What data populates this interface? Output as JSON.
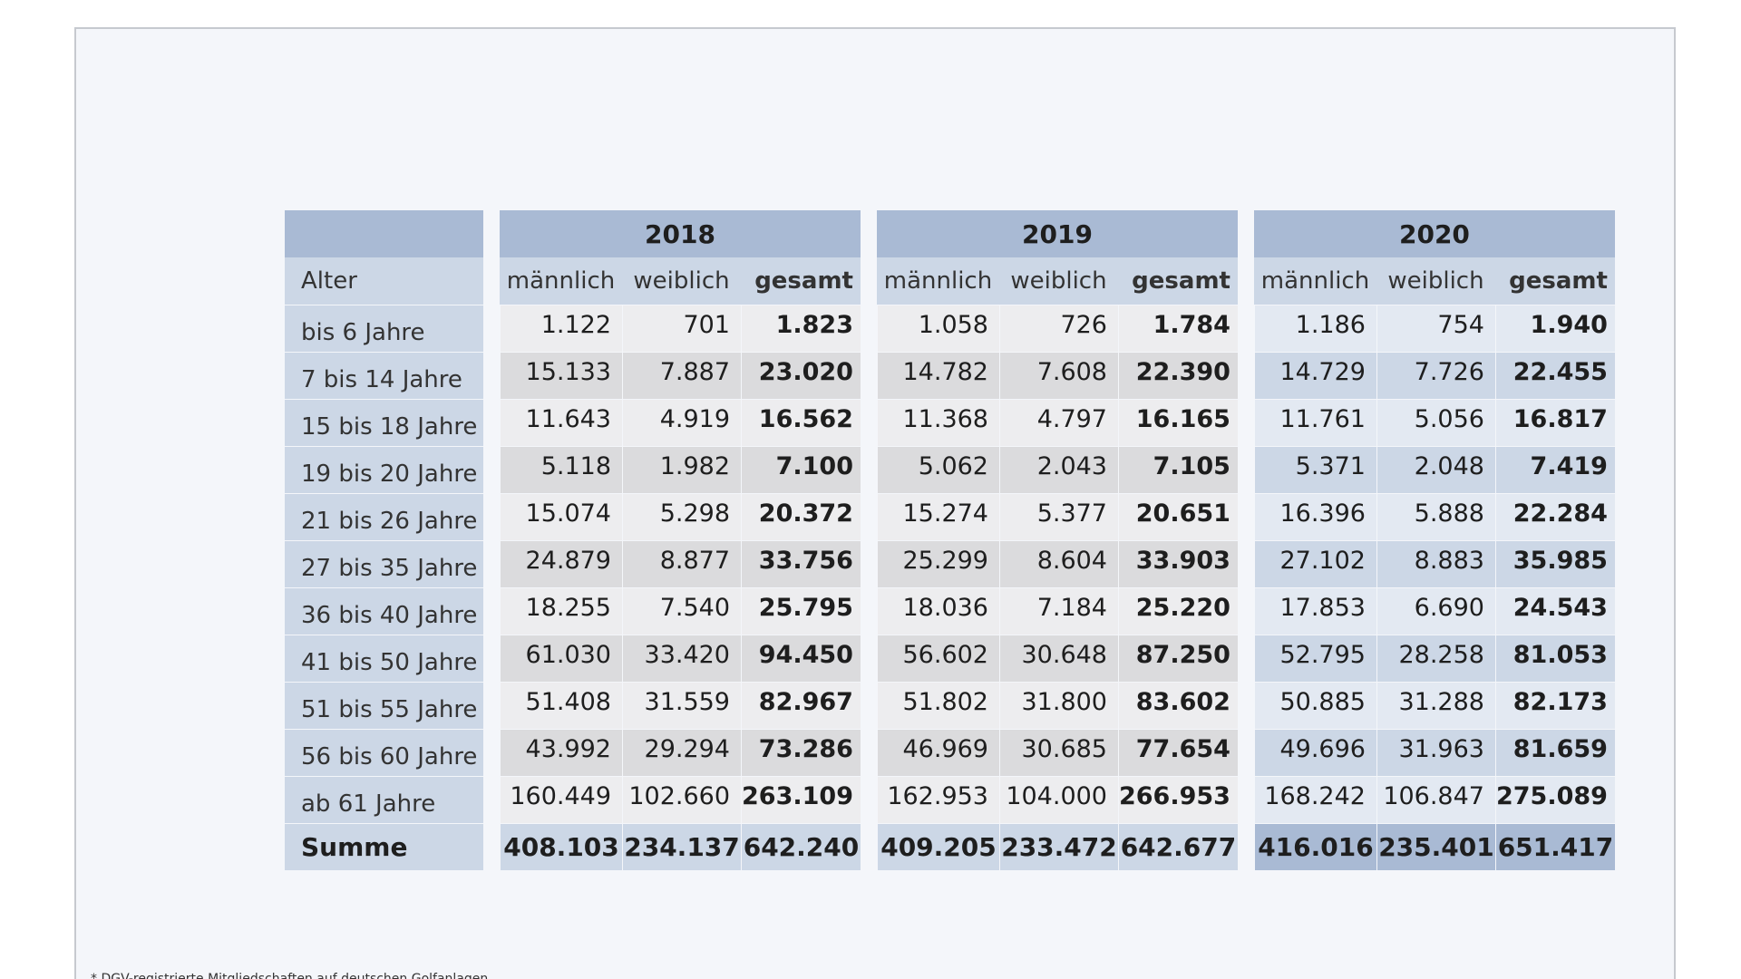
{
  "table": {
    "label_header": "Alter",
    "years": [
      "2018",
      "2019",
      "2020"
    ],
    "sub_headers": [
      "männlich",
      "weiblich",
      "gesamt"
    ],
    "rows": [
      {
        "label": "bis 6 Jahre",
        "values": [
          [
            "1.122",
            "701",
            "1.823"
          ],
          [
            "1.058",
            "726",
            "1.784"
          ],
          [
            "1.186",
            "754",
            "1.940"
          ]
        ]
      },
      {
        "label": "7 bis 14 Jahre",
        "values": [
          [
            "15.133",
            "7.887",
            "23.020"
          ],
          [
            "14.782",
            "7.608",
            "22.390"
          ],
          [
            "14.729",
            "7.726",
            "22.455"
          ]
        ]
      },
      {
        "label": "15 bis 18 Jahre",
        "values": [
          [
            "11.643",
            "4.919",
            "16.562"
          ],
          [
            "11.368",
            "4.797",
            "16.165"
          ],
          [
            "11.761",
            "5.056",
            "16.817"
          ]
        ]
      },
      {
        "label": "19 bis 20 Jahre",
        "values": [
          [
            "5.118",
            "1.982",
            "7.100"
          ],
          [
            "5.062",
            "2.043",
            "7.105"
          ],
          [
            "5.371",
            "2.048",
            "7.419"
          ]
        ]
      },
      {
        "label": "21 bis 26 Jahre",
        "values": [
          [
            "15.074",
            "5.298",
            "20.372"
          ],
          [
            "15.274",
            "5.377",
            "20.651"
          ],
          [
            "16.396",
            "5.888",
            "22.284"
          ]
        ]
      },
      {
        "label": "27 bis 35 Jahre",
        "values": [
          [
            "24.879",
            "8.877",
            "33.756"
          ],
          [
            "25.299",
            "8.604",
            "33.903"
          ],
          [
            "27.102",
            "8.883",
            "35.985"
          ]
        ]
      },
      {
        "label": "36 bis 40 Jahre",
        "values": [
          [
            "18.255",
            "7.540",
            "25.795"
          ],
          [
            "18.036",
            "7.184",
            "25.220"
          ],
          [
            "17.853",
            "6.690",
            "24.543"
          ]
        ]
      },
      {
        "label": "41 bis 50 Jahre",
        "values": [
          [
            "61.030",
            "33.420",
            "94.450"
          ],
          [
            "56.602",
            "30.648",
            "87.250"
          ],
          [
            "52.795",
            "28.258",
            "81.053"
          ]
        ]
      },
      {
        "label": "51 bis 55 Jahre",
        "values": [
          [
            "51.408",
            "31.559",
            "82.967"
          ],
          [
            "51.802",
            "31.800",
            "83.602"
          ],
          [
            "50.885",
            "31.288",
            "82.173"
          ]
        ]
      },
      {
        "label": "56 bis 60 Jahre",
        "values": [
          [
            "43.992",
            "29.294",
            "73.286"
          ],
          [
            "46.969",
            "30.685",
            "77.654"
          ],
          [
            "49.696",
            "31.963",
            "81.659"
          ]
        ]
      },
      {
        "label": "ab 61 Jahre",
        "values": [
          [
            "160.449",
            "102.660",
            "263.109"
          ],
          [
            "162.953",
            "104.000",
            "266.953"
          ],
          [
            "168.242",
            "106.847",
            "275.089"
          ]
        ]
      }
    ],
    "sum": {
      "label": "Summe",
      "values": [
        [
          "408.103",
          "234.137",
          "642.240"
        ],
        [
          "409.205",
          "233.472",
          "642.677"
        ],
        [
          "416.016",
          "235.401",
          "651.417"
        ]
      ]
    }
  },
  "footnote": "* DGV-registrierte Mitgliedschaften auf deutschen Golfanlagen"
}
